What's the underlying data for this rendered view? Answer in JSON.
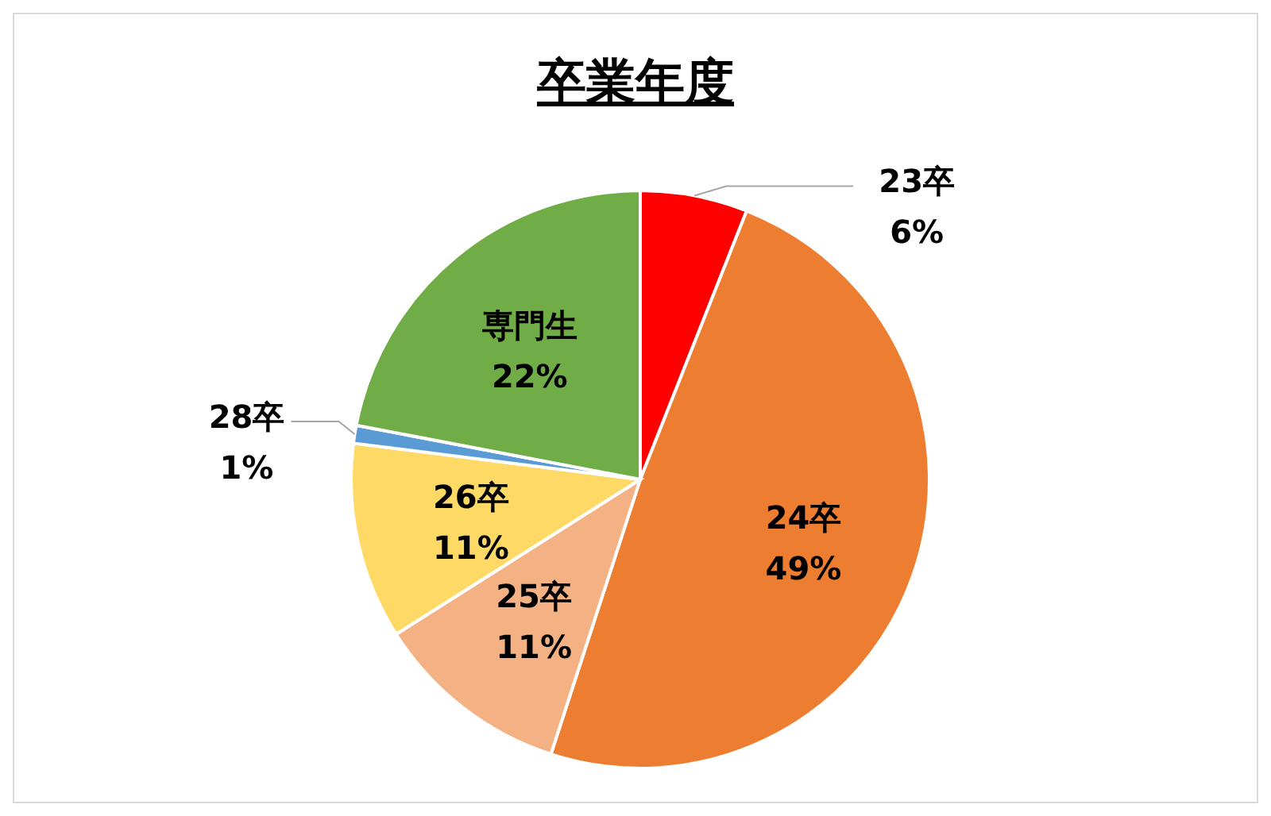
{
  "chart_data": {
    "type": "pie",
    "title": "卒業年度",
    "categories": [
      "23卒",
      "24卒",
      "25卒",
      "26卒",
      "28卒",
      "専門生"
    ],
    "values": [
      6,
      49,
      11,
      11,
      1,
      22
    ],
    "value_labels": [
      "6%",
      "49%",
      "11%",
      "11%",
      "1%",
      "22%"
    ],
    "colors": [
      "#ff0000",
      "#ed7d31",
      "#f4b183",
      "#ffd966",
      "#5b9bd5",
      "#70ad47"
    ],
    "legend": false
  }
}
